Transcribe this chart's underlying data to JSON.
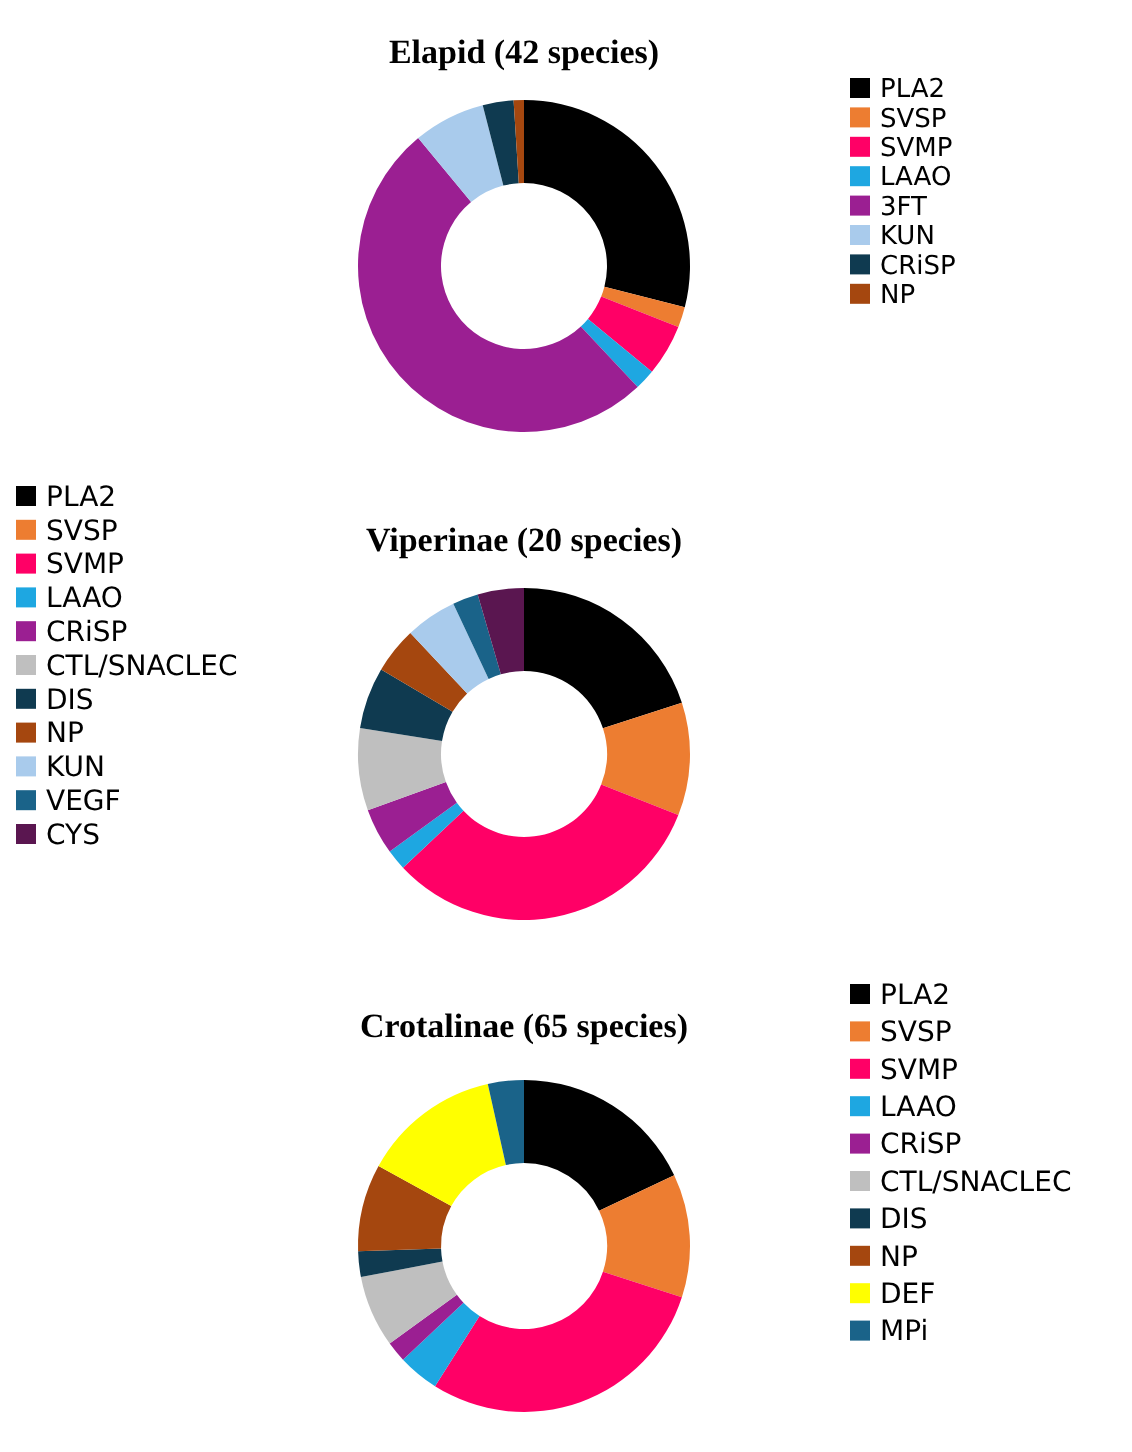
{
  "chart_data": [
    {
      "type": "donut",
      "title": "Elapid (42 species)",
      "legend": "right",
      "categories": [
        "PLA2",
        "SVSP",
        "SVMP",
        "LAAO",
        "3FT",
        "KUN",
        "CRiSP",
        "NP"
      ],
      "values": [
        29,
        2,
        5,
        2,
        51,
        7,
        3,
        1
      ],
      "colors": [
        "#000000",
        "#ed7d31",
        "#ff0066",
        "#1ea7e1",
        "#9b1f92",
        "#a9cbec",
        "#0f3a50",
        "#a5470f"
      ]
    },
    {
      "type": "donut",
      "title": "Viperinae (20 species)",
      "legend": "left",
      "categories": [
        "PLA2",
        "SVSP",
        "SVMP",
        "LAAO",
        "CRiSP",
        "CTL/SNACLEC",
        "DIS",
        "NP",
        "KUN",
        "VEGF",
        "CYS"
      ],
      "values": [
        20,
        11,
        32,
        2,
        4.5,
        8,
        6,
        4.5,
        5,
        2.5,
        4.5
      ],
      "colors": [
        "#000000",
        "#ed7d31",
        "#ff0066",
        "#1ea7e1",
        "#9b1f92",
        "#bfbfbf",
        "#0f3a50",
        "#a5470f",
        "#a9cbec",
        "#1a6389",
        "#5a1650"
      ]
    },
    {
      "type": "donut",
      "title": "Crotalinae (65 species)",
      "legend": "right",
      "categories": [
        "PLA2",
        "SVSP",
        "SVMP",
        "LAAO",
        "CRiSP",
        "CTL/SNACLEC",
        "DIS",
        "NP",
        "DEF",
        "MPi"
      ],
      "values": [
        18,
        12,
        29,
        4,
        2,
        7,
        2.5,
        8.5,
        13.5,
        3.5
      ],
      "colors": [
        "#000000",
        "#ed7d31",
        "#ff0066",
        "#1ea7e1",
        "#9b1f92",
        "#bfbfbf",
        "#0f3a50",
        "#a5470f",
        "#ffff00",
        "#1a6389"
      ]
    }
  ]
}
